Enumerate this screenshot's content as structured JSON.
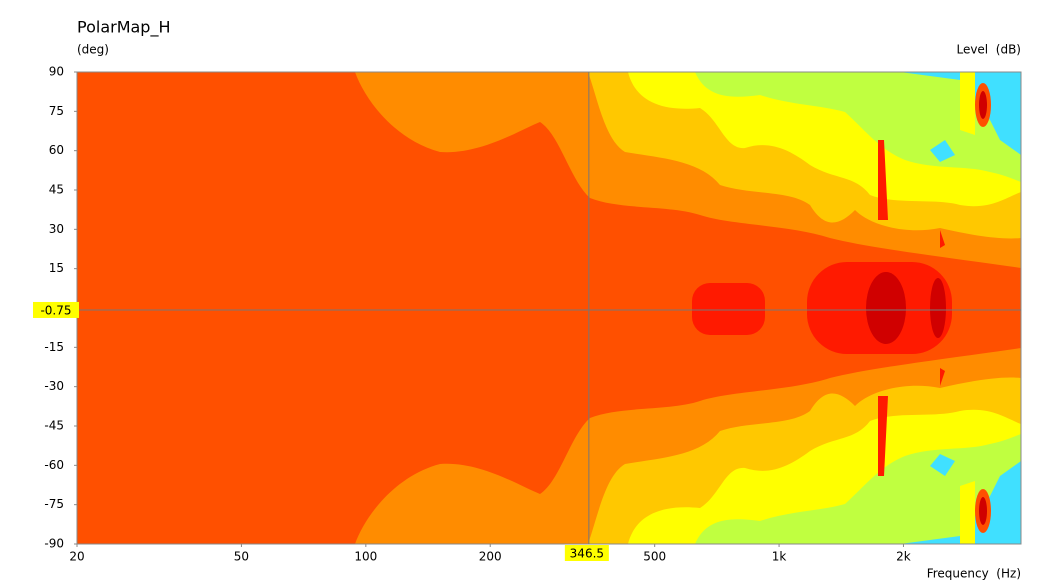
{
  "chart_data": {
    "type": "contour",
    "title": "PolarMap_H",
    "y_label": "(deg)",
    "legend_label": "Level  (dB)",
    "x_label": "Frequency  (Hz)",
    "xscale": "log",
    "xlim": [
      20,
      3850
    ],
    "xticks": [
      20,
      50,
      100,
      200,
      500,
      {
        "value": 1000,
        "label": "1k"
      },
      {
        "value": 2000,
        "label": "2k"
      }
    ],
    "ylim": [
      -90,
      90
    ],
    "yticks": [
      -90,
      -75,
      -60,
      -45,
      -30,
      -15,
      15,
      30,
      45,
      60,
      75,
      90
    ],
    "cursor": {
      "x": 346.5,
      "y": -0.75
    }
  }
}
